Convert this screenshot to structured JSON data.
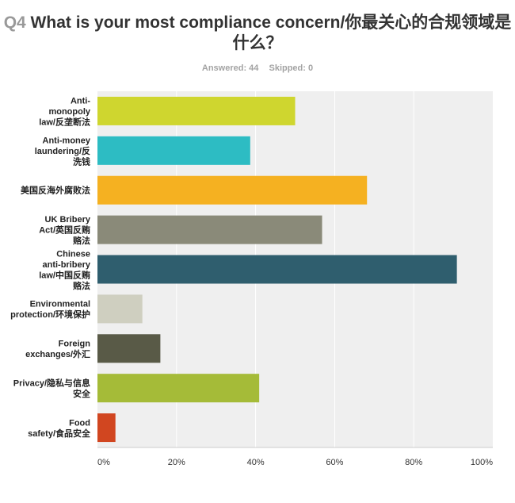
{
  "question": {
    "number": "Q4",
    "text": "What is your most compliance concern/你最关心的合规领域是什么？"
  },
  "stats": {
    "answered": "Answered: 44",
    "skipped": "Skipped: 0"
  },
  "colors": {
    "plot_bg": "#efefef",
    "grid": "#ffffff"
  },
  "chart_data": {
    "type": "bar",
    "orientation": "horizontal",
    "categories": [
      "Anti-monopoly law/反垄断法",
      "Anti-money laundering/反洗钱",
      "美国反海外腐败法",
      "UK Bribery Act/英国反贿赂法",
      "Chinese anti-bribery law/中国反贿赂法",
      "Environmental protection/环境保护",
      "Foreign exchanges/外汇",
      "Privacy/隐私与信息安全",
      "Food safety/食品安全"
    ],
    "category_lines": [
      [
        "Anti-",
        "monopoly",
        "law/反垄断法"
      ],
      [
        "Anti-money",
        "laundering/反",
        "洗钱"
      ],
      [
        "美国反海外腐败法"
      ],
      [
        "UK Bribery",
        "Act/英国反贿",
        "赂法"
      ],
      [
        "Chinese",
        "anti-bribery",
        "law/中国反贿",
        "赂法"
      ],
      [
        "Environmental",
        "protection/环境保护"
      ],
      [
        "Foreign",
        "exchanges/外汇"
      ],
      [
        "Privacy/隐私与信息",
        "安全"
      ],
      [
        "Food",
        "safety/食品安全"
      ]
    ],
    "values": [
      50.0,
      38.64,
      68.18,
      56.82,
      90.91,
      11.36,
      15.91,
      40.91,
      4.55
    ],
    "colors": [
      "#cfd62f",
      "#2dbcc3",
      "#f5b121",
      "#8a8a79",
      "#2f5e6e",
      "#cfcfc0",
      "#595a47",
      "#a5bb38",
      "#d14620"
    ],
    "xlim": [
      0,
      100
    ],
    "xticks": [
      "0%",
      "20%",
      "40%",
      "60%",
      "80%",
      "100%"
    ],
    "grid": true
  }
}
